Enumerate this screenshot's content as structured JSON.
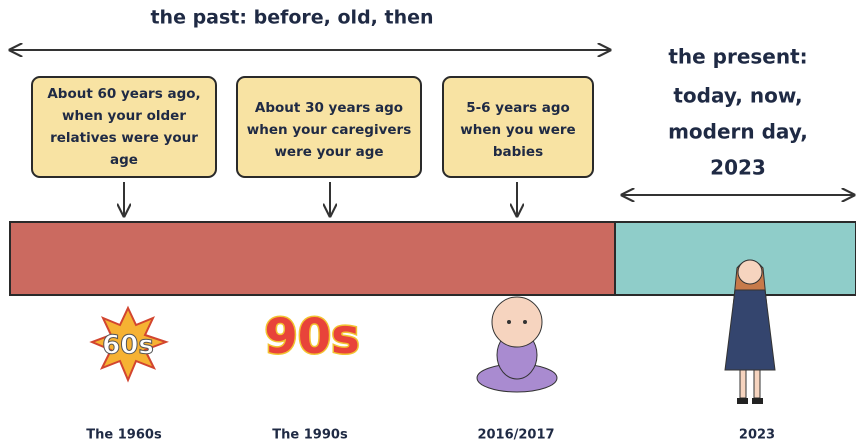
{
  "past": {
    "label": "the past: before, old, then"
  },
  "present": {
    "lines": [
      "the present:",
      "today, now,",
      "modern day,",
      "2023"
    ]
  },
  "boxes": [
    {
      "lines": [
        "About 60 years ago,",
        "when your older",
        "relatives were your",
        "age"
      ]
    },
    {
      "lines": [
        "About 30 years ago",
        "when your caregivers",
        "were your age"
      ]
    },
    {
      "lines": [
        "5-6 years ago",
        "when you were",
        "babies"
      ]
    }
  ],
  "logos": [
    "60s",
    "90s"
  ],
  "eras": [
    "The 1960s",
    "The 1990s",
    "2016/2017",
    "2023"
  ]
}
